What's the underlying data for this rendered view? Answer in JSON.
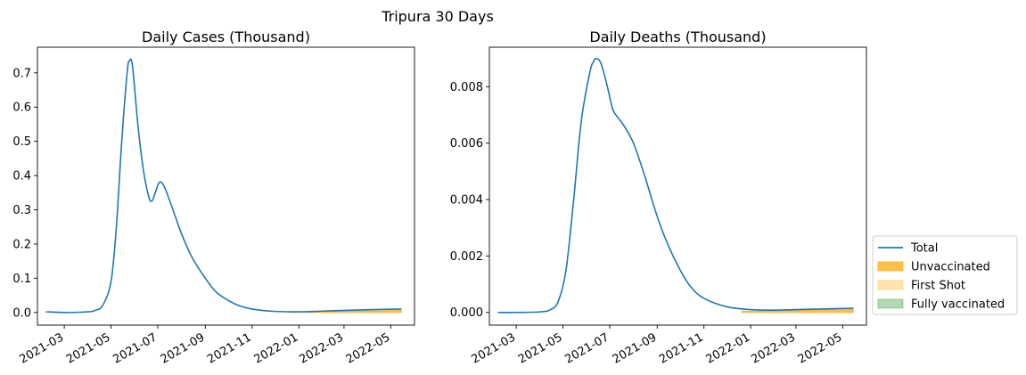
{
  "suptitle": "Tripura 30 Days",
  "legend": {
    "placement": "lower-right outside",
    "entries": [
      {
        "label": "Total",
        "kind": "line",
        "color": "#1f77b4"
      },
      {
        "label": "Unvaccinated",
        "kind": "patch",
        "color": "#ffa500",
        "opacity": 0.7
      },
      {
        "label": "First Shot",
        "kind": "patch",
        "color": "#ffa500",
        "opacity": 0.3
      },
      {
        "label": "Fully vaccinated",
        "kind": "patch",
        "color": "#008000",
        "opacity": 0.3
      }
    ]
  },
  "chart_data": [
    {
      "type": "line",
      "title": "Daily Cases (Thousand)",
      "xlabel": "",
      "ylabel": "",
      "xlim": [
        "2021-01-25",
        "2022-06-01"
      ],
      "ylim": [
        -0.037,
        0.775
      ],
      "xticks": [
        "2021-03",
        "2021-05",
        "2021-07",
        "2021-09",
        "2021-11",
        "2022-01",
        "2022-03",
        "2022-05"
      ],
      "yticks": [
        0.0,
        0.1,
        0.2,
        0.3,
        0.4,
        0.5,
        0.6,
        0.7
      ],
      "ytick_labels": [
        "0.0",
        "0.1",
        "0.2",
        "0.3",
        "0.4",
        "0.5",
        "0.6",
        "0.7"
      ],
      "grid": false,
      "series": [
        {
          "name": "Total",
          "color": "#1f77b4",
          "x": [
            "2021-02-05",
            "2021-03-01",
            "2021-04-01",
            "2021-04-10",
            "2021-04-20",
            "2021-05-01",
            "2021-05-08",
            "2021-05-15",
            "2021-05-22",
            "2021-05-25",
            "2021-05-29",
            "2021-06-05",
            "2021-06-12",
            "2021-06-19",
            "2021-06-23",
            "2021-06-27",
            "2021-07-03",
            "2021-07-09",
            "2021-07-16",
            "2021-07-24",
            "2021-08-01",
            "2021-08-15",
            "2021-09-01",
            "2021-09-15",
            "2021-10-01",
            "2021-10-15",
            "2021-11-01",
            "2021-12-01",
            "2022-01-01",
            "2022-02-01",
            "2022-03-01",
            "2022-04-01",
            "2022-05-15"
          ],
          "y": [
            0.002,
            0.0,
            0.002,
            0.006,
            0.02,
            0.09,
            0.25,
            0.5,
            0.7,
            0.735,
            0.72,
            0.55,
            0.42,
            0.34,
            0.325,
            0.345,
            0.38,
            0.37,
            0.33,
            0.28,
            0.23,
            0.16,
            0.1,
            0.06,
            0.035,
            0.02,
            0.01,
            0.003,
            0.002,
            0.004,
            0.006,
            0.008,
            0.01
          ]
        }
      ],
      "areas": [
        {
          "name": "Unvaccinated",
          "color": "#ffa500",
          "opacity": 0.7,
          "x": [
            "2021-12-20",
            "2022-02-01",
            "2022-03-15",
            "2022-05-15"
          ],
          "y_low": [
            0.0,
            0.0,
            0.0,
            0.0
          ],
          "y_high": [
            0.002,
            0.003,
            0.004,
            0.006
          ]
        }
      ]
    },
    {
      "type": "line",
      "title": "Daily Deaths (Thousand)",
      "xlabel": "",
      "ylabel": "",
      "xlim": [
        "2021-01-25",
        "2022-06-01"
      ],
      "ylim": [
        -0.00045,
        0.0094
      ],
      "xticks": [
        "2021-03",
        "2021-05",
        "2021-07",
        "2021-09",
        "2021-11",
        "2022-01",
        "2022-03",
        "2022-05"
      ],
      "yticks": [
        0.0,
        0.002,
        0.004,
        0.006,
        0.008
      ],
      "ytick_labels": [
        "0.000",
        "0.002",
        "0.004",
        "0.006",
        "0.008"
      ],
      "grid": false,
      "series": [
        {
          "name": "Total",
          "color": "#1f77b4",
          "x": [
            "2021-02-05",
            "2021-03-01",
            "2021-04-01",
            "2021-04-15",
            "2021-04-25",
            "2021-05-05",
            "2021-05-15",
            "2021-05-25",
            "2021-06-05",
            "2021-06-10",
            "2021-06-14",
            "2021-06-20",
            "2021-06-28",
            "2021-07-05",
            "2021-07-12",
            "2021-07-20",
            "2021-08-01",
            "2021-08-15",
            "2021-09-01",
            "2021-09-15",
            "2021-10-01",
            "2021-10-15",
            "2021-11-01",
            "2021-12-01",
            "2022-01-01",
            "2022-02-01",
            "2022-03-01",
            "2022-04-01",
            "2022-05-15"
          ],
          "y": [
            0.0,
            0.0,
            2e-05,
            0.0001,
            0.0004,
            0.0015,
            0.004,
            0.0068,
            0.0085,
            0.0089,
            0.009,
            0.0088,
            0.008,
            0.0072,
            0.0069,
            0.0066,
            0.006,
            0.0049,
            0.0034,
            0.0024,
            0.0015,
            0.0009,
            0.0005,
            0.0002,
            0.0001,
            8e-05,
            0.0001,
            0.00012,
            0.00015
          ]
        }
      ],
      "areas": [
        {
          "name": "Unvaccinated",
          "color": "#ffa500",
          "opacity": 0.7,
          "x": [
            "2021-12-20",
            "2022-02-01",
            "2022-03-15",
            "2022-05-15"
          ],
          "y_low": [
            0.0,
            0.0,
            0.0,
            0.0
          ],
          "y_high": [
            4e-05,
            5e-05,
            8e-05,
            0.00012
          ]
        }
      ]
    }
  ]
}
